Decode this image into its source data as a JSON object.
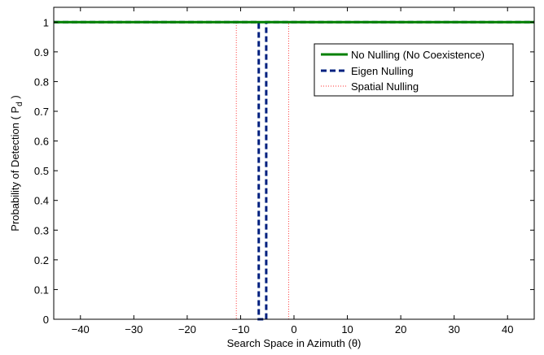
{
  "chart_data": {
    "type": "line",
    "xlabel": "Search Space in Azimuth (θ)",
    "ylabel": "Probability of Detection ( P",
    "ylabel_sub": "d",
    "ylabel_tail": " )",
    "xlim": [
      -45,
      45
    ],
    "ylim": [
      0,
      1.05
    ],
    "xticks": [
      -40,
      -30,
      -20,
      -10,
      0,
      10,
      20,
      30,
      40
    ],
    "yticks": [
      0,
      0.1,
      0.2,
      0.3,
      0.4,
      0.5,
      0.6,
      0.7,
      0.8,
      0.9,
      1
    ],
    "xtick_labels": [
      "−40",
      "−30",
      "−20",
      "−10",
      "0",
      "10",
      "20",
      "30",
      "40"
    ],
    "ytick_labels": [
      "0",
      "0.1",
      "0.2",
      "0.3",
      "0.4",
      "0.5",
      "0.6",
      "0.7",
      "0.8",
      "0.9",
      "1"
    ],
    "grid": false,
    "legend_position": "top-right",
    "series": [
      {
        "name": "No Nulling (No Coexistence)",
        "color": "#008000",
        "style": "solid",
        "x": [
          -45,
          45
        ],
        "y": [
          1,
          1
        ]
      },
      {
        "name": "Eigen Nulling",
        "color": "#00207f",
        "style": "dashed",
        "x": [
          -45,
          -6.6,
          -6.6,
          -5.2,
          -5.2,
          45
        ],
        "y": [
          1,
          1,
          0,
          0,
          1,
          1
        ]
      },
      {
        "name": "Spatial Nulling",
        "color": "#ff3333",
        "style": "dotted",
        "x": [
          -45,
          -10.8,
          -10.8,
          -1.0,
          -1.0,
          45
        ],
        "y": [
          1,
          1,
          0,
          0,
          1,
          1
        ]
      }
    ]
  }
}
